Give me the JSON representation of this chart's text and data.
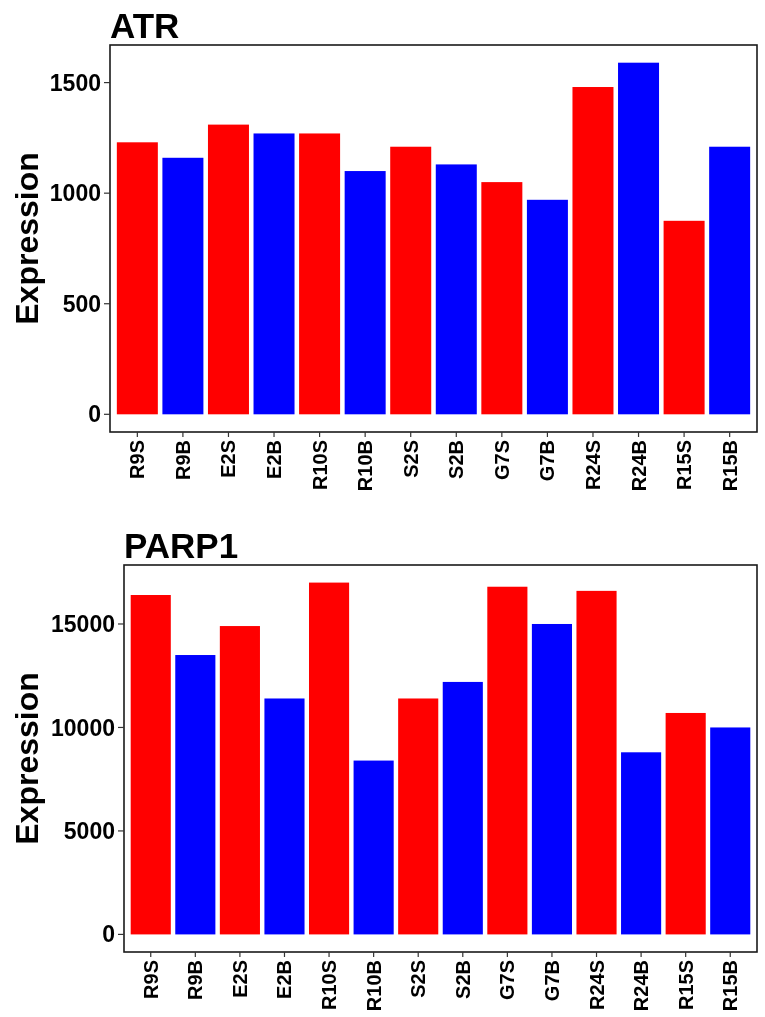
{
  "chart_data": [
    {
      "type": "bar",
      "title": "ATR",
      "ylabel": "Expression",
      "categories": [
        "R9S",
        "R9B",
        "E2S",
        "E2B",
        "R10S",
        "R10B",
        "S2S",
        "S2B",
        "G7S",
        "G7B",
        "R24S",
        "R24B",
        "R15S",
        "R15B"
      ],
      "values": [
        1230,
        1160,
        1310,
        1270,
        1270,
        1100,
        1210,
        1130,
        1050,
        970,
        1480,
        1590,
        875,
        1210
      ],
      "colors": [
        "#ff0000",
        "#0000ff",
        "#ff0000",
        "#0000ff",
        "#ff0000",
        "#0000ff",
        "#ff0000",
        "#0000ff",
        "#ff0000",
        "#0000ff",
        "#ff0000",
        "#0000ff",
        "#ff0000",
        "#0000ff"
      ],
      "ylim": [
        -80,
        1670
      ],
      "yticks": [
        0,
        500,
        1000,
        1500
      ]
    },
    {
      "type": "bar",
      "title": "PARP1",
      "ylabel": "Expression",
      "categories": [
        "R9S",
        "R9B",
        "E2S",
        "E2B",
        "R10S",
        "R10B",
        "S2S",
        "S2B",
        "G7S",
        "G7B",
        "R24S",
        "R24B",
        "R15S",
        "R15B"
      ],
      "values": [
        16400,
        13500,
        14900,
        11400,
        17000,
        8400,
        11400,
        12200,
        16800,
        15000,
        16600,
        8800,
        10700,
        10000
      ],
      "colors": [
        "#ff0000",
        "#0000ff",
        "#ff0000",
        "#0000ff",
        "#ff0000",
        "#0000ff",
        "#ff0000",
        "#0000ff",
        "#ff0000",
        "#0000ff",
        "#ff0000",
        "#0000ff",
        "#ff0000",
        "#0000ff"
      ],
      "ylim": [
        -850,
        17850
      ],
      "yticks": [
        0,
        5000,
        10000,
        15000
      ]
    }
  ]
}
